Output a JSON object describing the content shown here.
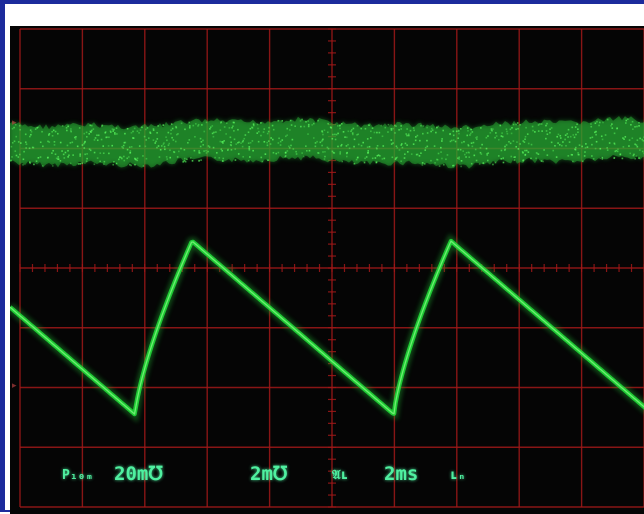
{
  "readouts": {
    "ch1_label": "P₁₀ₘ",
    "ch1_scale": "20m℧",
    "ch2_scale": "2m℧",
    "trigger_label": "𝔄ʟ",
    "timebase": "2ms",
    "trigger_source": "ʟₙ"
  },
  "colors": {
    "screen_background": "#050505",
    "graticule": "#a01818",
    "trace": "#22e03a",
    "readout_text": "#4ff0a0",
    "frame_border": "#1c2b9c"
  },
  "graticule": {
    "divisions_x": 10,
    "divisions_y": 8
  },
  "traces": {
    "noise": {
      "description_level_div": 1.9,
      "band_half_width_div": 0.32
    },
    "sawtooth": {
      "period_div": 4.15,
      "peak_level_div": 3.55,
      "trough_level_div": 6.45
    }
  }
}
